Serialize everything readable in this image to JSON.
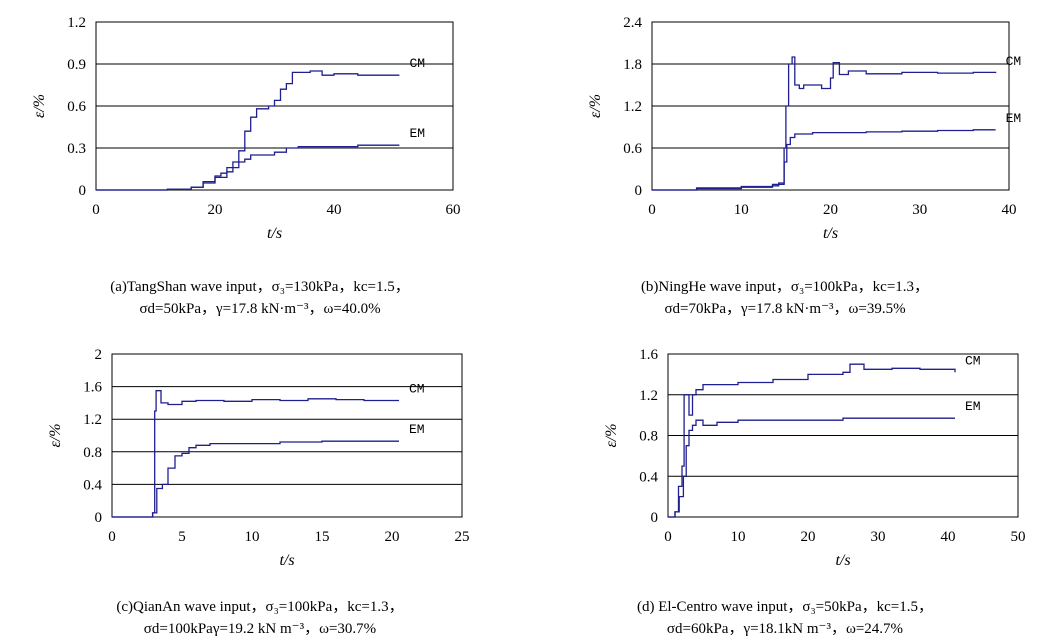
{
  "chart_data": [
    {
      "type": "line",
      "xlabel": "t/s",
      "ylabel": "ε/%",
      "xlim": [
        0,
        60
      ],
      "ylim": [
        0,
        1.2
      ],
      "xticks": [
        "0",
        "20",
        "40",
        "60"
      ],
      "yticks": [
        "0",
        "0.3",
        "0.6",
        "0.9",
        "1.2"
      ],
      "grid": "horizontal",
      "series_color": "#1f1f8f",
      "series": [
        {
          "name": "CM",
          "points": [
            [
              0,
              0
            ],
            [
              6,
              0
            ],
            [
              12,
              0.005
            ],
            [
              16,
              0.02
            ],
            [
              18,
              0.06
            ],
            [
              20,
              0.1
            ],
            [
              21,
              0.12
            ],
            [
              22,
              0.16
            ],
            [
              23,
              0.2
            ],
            [
              24,
              0.28
            ],
            [
              25,
              0.42
            ],
            [
              26,
              0.52
            ],
            [
              27,
              0.58
            ],
            [
              28,
              0.58
            ],
            [
              29,
              0.6
            ],
            [
              30,
              0.64
            ],
            [
              31,
              0.72
            ],
            [
              32,
              0.76
            ],
            [
              33,
              0.84
            ],
            [
              34,
              0.84
            ],
            [
              36,
              0.85
            ],
            [
              38,
              0.82
            ],
            [
              40,
              0.83
            ],
            [
              44,
              0.82
            ],
            [
              48,
              0.82
            ],
            [
              51,
              0.82
            ]
          ]
        },
        {
          "name": "EM",
          "points": [
            [
              0,
              0
            ],
            [
              6,
              0
            ],
            [
              12,
              0.005
            ],
            [
              16,
              0.02
            ],
            [
              18,
              0.05
            ],
            [
              20,
              0.09
            ],
            [
              22,
              0.13
            ],
            [
              23,
              0.16
            ],
            [
              24,
              0.2
            ],
            [
              25,
              0.22
            ],
            [
              26,
              0.25
            ],
            [
              28,
              0.25
            ],
            [
              30,
              0.27
            ],
            [
              32,
              0.3
            ],
            [
              34,
              0.31
            ],
            [
              36,
              0.31
            ],
            [
              38,
              0.31
            ],
            [
              40,
              0.31
            ],
            [
              44,
              0.32
            ],
            [
              48,
              0.32
            ],
            [
              51,
              0.32
            ]
          ]
        }
      ],
      "caption": [
        "(a)TangShan wave input，σ₃=130kPa，kc=1.5，",
        "σd=50kPa，γ=17.8 kN·m⁻³，ω=40.0%"
      ]
    },
    {
      "type": "line",
      "xlabel": "t/s",
      "ylabel": "ε/%",
      "xlim": [
        0,
        40
      ],
      "ylim": [
        0,
        2.4
      ],
      "xticks": [
        "0",
        "10",
        "20",
        "30",
        "40"
      ],
      "yticks": [
        "0",
        "0.6",
        "1.2",
        "1.8",
        "2.4"
      ],
      "grid": "horizontal",
      "series_color": "#1f1f8f",
      "series": [
        {
          "name": "CM",
          "points": [
            [
              0,
              0
            ],
            [
              5,
              0.03
            ],
            [
              10,
              0.05
            ],
            [
              13.5,
              0.08
            ],
            [
              14.2,
              0.1
            ],
            [
              14.8,
              0.6
            ],
            [
              15,
              1.2
            ],
            [
              15.3,
              1.8
            ],
            [
              15.7,
              1.9
            ],
            [
              16,
              1.5
            ],
            [
              16.5,
              1.45
            ],
            [
              17,
              1.5
            ],
            [
              18,
              1.5
            ],
            [
              19,
              1.45
            ],
            [
              20,
              1.6
            ],
            [
              20.3,
              1.82
            ],
            [
              21,
              1.65
            ],
            [
              22,
              1.7
            ],
            [
              24,
              1.66
            ],
            [
              28,
              1.68
            ],
            [
              32,
              1.67
            ],
            [
              36,
              1.68
            ],
            [
              38.5,
              1.67
            ]
          ]
        },
        {
          "name": "EM",
          "points": [
            [
              0,
              0
            ],
            [
              5,
              0.02
            ],
            [
              10,
              0.04
            ],
            [
              13.5,
              0.06
            ],
            [
              14.2,
              0.08
            ],
            [
              14.8,
              0.4
            ],
            [
              15.1,
              0.65
            ],
            [
              15.5,
              0.75
            ],
            [
              16,
              0.8
            ],
            [
              18,
              0.82
            ],
            [
              20,
              0.82
            ],
            [
              24,
              0.83
            ],
            [
              28,
              0.84
            ],
            [
              32,
              0.85
            ],
            [
              36,
              0.86
            ],
            [
              38.5,
              0.86
            ]
          ]
        }
      ],
      "caption": [
        "(b)NingHe wave input，σ₃=100kPa，kc=1.3，",
        "σd=70kPa，γ=17.8 kN·m⁻³，ω=39.5%"
      ]
    },
    {
      "type": "line",
      "xlabel": "t/s",
      "ylabel": "ε/%",
      "xlim": [
        0,
        25
      ],
      "ylim": [
        0,
        2
      ],
      "xticks": [
        "0",
        "5",
        "10",
        "15",
        "20",
        "25"
      ],
      "yticks": [
        "0",
        "0.4",
        "0.8",
        "1.2",
        "1.6",
        "2"
      ],
      "grid": "horizontal",
      "series_color": "#1f1f8f",
      "series": [
        {
          "name": "CM",
          "points": [
            [
              0,
              0
            ],
            [
              2.5,
              0
            ],
            [
              2.9,
              0.05
            ],
            [
              3.05,
              1.3
            ],
            [
              3.15,
              1.55
            ],
            [
              3.5,
              1.4
            ],
            [
              4,
              1.38
            ],
            [
              5,
              1.42
            ],
            [
              6,
              1.43
            ],
            [
              8,
              1.42
            ],
            [
              10,
              1.44
            ],
            [
              12,
              1.43
            ],
            [
              14,
              1.45
            ],
            [
              16,
              1.44
            ],
            [
              18,
              1.43
            ],
            [
              20.5,
              1.43
            ]
          ]
        },
        {
          "name": "EM",
          "points": [
            [
              0,
              0
            ],
            [
              2.5,
              0
            ],
            [
              2.9,
              0.05
            ],
            [
              3.2,
              0.35
            ],
            [
              3.6,
              0.4
            ],
            [
              4,
              0.6
            ],
            [
              4.5,
              0.75
            ],
            [
              5,
              0.78
            ],
            [
              5.5,
              0.85
            ],
            [
              6,
              0.88
            ],
            [
              7,
              0.9
            ],
            [
              9,
              0.9
            ],
            [
              12,
              0.92
            ],
            [
              15,
              0.93
            ],
            [
              18,
              0.93
            ],
            [
              20.5,
              0.93
            ]
          ]
        }
      ],
      "caption": [
        "(c)QianAn wave input，σ₃=100kPa，kc=1.3，",
        "σd=100kPaγ=19.2 kN m⁻³，ω=30.7%"
      ]
    },
    {
      "type": "line",
      "xlabel": "t/s",
      "ylabel": "ε/%",
      "xlim": [
        0,
        50
      ],
      "ylim": [
        0,
        1.6
      ],
      "xticks": [
        "0",
        "10",
        "20",
        "30",
        "40",
        "50"
      ],
      "yticks": [
        "0",
        "0.4",
        "0.8",
        "1.2",
        "1.6"
      ],
      "grid": "horizontal",
      "series_color": "#1f1f8f",
      "series": [
        {
          "name": "CM",
          "points": [
            [
              0,
              0
            ],
            [
              1,
              0.05
            ],
            [
              1.5,
              0.3
            ],
            [
              2,
              0.5
            ],
            [
              2.3,
              1.2
            ],
            [
              3,
              1.0
            ],
            [
              3.5,
              1.2
            ],
            [
              4,
              1.25
            ],
            [
              5,
              1.3
            ],
            [
              7,
              1.3
            ],
            [
              10,
              1.32
            ],
            [
              15,
              1.35
            ],
            [
              20,
              1.4
            ],
            [
              25,
              1.42
            ],
            [
              26,
              1.5
            ],
            [
              28,
              1.45
            ],
            [
              32,
              1.46
            ],
            [
              36,
              1.45
            ],
            [
              40,
              1.45
            ],
            [
              41,
              1.42
            ]
          ]
        },
        {
          "name": "EM",
          "points": [
            [
              0,
              0
            ],
            [
              1,
              0.05
            ],
            [
              1.6,
              0.2
            ],
            [
              2.2,
              0.4
            ],
            [
              2.6,
              0.7
            ],
            [
              3,
              0.85
            ],
            [
              3.5,
              0.9
            ],
            [
              4,
              0.95
            ],
            [
              5,
              0.9
            ],
            [
              7,
              0.93
            ],
            [
              10,
              0.95
            ],
            [
              15,
              0.95
            ],
            [
              20,
              0.95
            ],
            [
              25,
              0.97
            ],
            [
              30,
              0.97
            ],
            [
              35,
              0.97
            ],
            [
              41,
              0.97
            ]
          ]
        }
      ],
      "caption": [
        "(d) El-Centro wave input，σ₃=50kPa，kc=1.5，",
        "σd=60kPa，γ=18.1kN m⁻³，ω=24.7%"
      ]
    }
  ]
}
